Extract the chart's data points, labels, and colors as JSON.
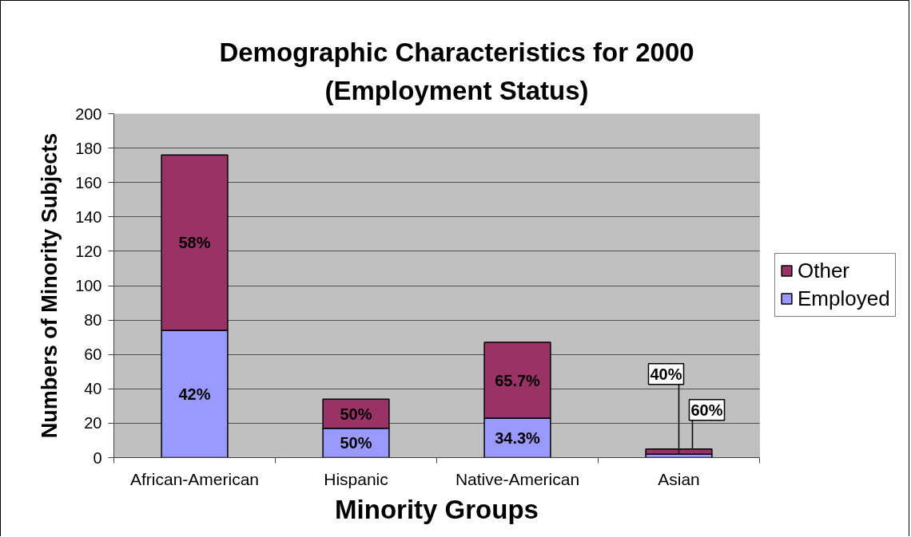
{
  "chart_data": {
    "type": "bar",
    "title": "Demographic Characteristics for 2000",
    "subtitle": "(Employment Status)",
    "xlabel": "Minority Groups",
    "ylabel": "Numbers of Minority Subjects",
    "categories": [
      "African-American",
      "Hispanic",
      "Native-American",
      "Asian"
    ],
    "series": [
      {
        "name": "Employed",
        "color": "#9999ff",
        "values": [
          74,
          17,
          23,
          2
        ]
      },
      {
        "name": "Other",
        "color": "#993366",
        "values": [
          102,
          17,
          44,
          3
        ]
      }
    ],
    "stacked": true,
    "ylim": [
      0,
      200
    ],
    "yticks": [
      0,
      20,
      40,
      60,
      80,
      100,
      120,
      140,
      160,
      180,
      200
    ],
    "grid": "y",
    "legend": "right",
    "annotations": [
      "42%",
      "58%",
      "50%",
      "50%",
      "34.3%",
      "65.7%",
      {
        "text": "40%",
        "x": "Asian",
        "y": 2
      },
      {
        "text": "60%",
        "x": "Asian",
        "y": 5
      }
    ]
  }
}
